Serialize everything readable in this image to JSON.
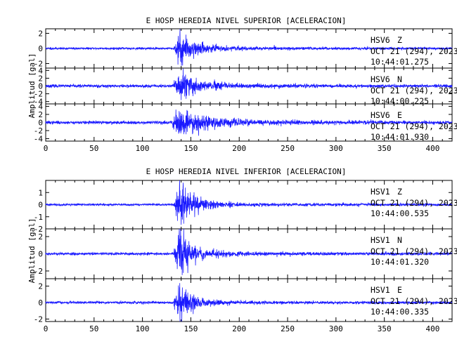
{
  "chart_data": [
    {
      "type": "line",
      "title": "E HOSP HEREDIA NIVEL SUPERIOR [ACELERACION]",
      "ylabel": "Amplitud [gal]",
      "xlim": [
        0,
        420
      ],
      "xticks": [
        0,
        50,
        100,
        150,
        200,
        250,
        300,
        350,
        400
      ],
      "series": [
        {
          "station": "HSV6",
          "component": "Z",
          "date": "OCT 21 (294), 2023",
          "time": "10:44:01.275",
          "ylim": [
            -2.6,
            2.6
          ],
          "yticks": [
            -2,
            0,
            2
          ],
          "onset": 132,
          "peak": 2.3,
          "decay": 14,
          "noise": 0.06,
          "coda": 0.08,
          "seed": 11
        },
        {
          "station": "HSV6",
          "component": "N",
          "date": "OCT 21 (294), 2023",
          "time": "10:44:00.225",
          "ylim": [
            -4.6,
            4.6
          ],
          "yticks": [
            -4,
            -2,
            0,
            2,
            4
          ],
          "onset": 132,
          "peak": 4.2,
          "decay": 16,
          "noise": 0.09,
          "coda": 0.1,
          "seed": 23
        },
        {
          "station": "HSV6",
          "component": "E",
          "date": "OCT 21 (294), 2023",
          "time": "10:44:01.930",
          "ylim": [
            -4.6,
            4.6
          ],
          "yticks": [
            -4,
            -2,
            0,
            2,
            4
          ],
          "onset": 131,
          "peak": 3.8,
          "decay": 22,
          "noise": 0.09,
          "coda": 0.16,
          "seed": 37
        }
      ]
    },
    {
      "type": "line",
      "title": "E HOSP HEREDIA NIVEL INFERIOR [ACELERACION]",
      "ylabel": "Amplitud [gal]",
      "xlim": [
        0,
        420
      ],
      "xticks": [
        0,
        50,
        100,
        150,
        200,
        250,
        300,
        350,
        400
      ],
      "series": [
        {
          "station": "HSV1",
          "component": "Z",
          "date": "OCT 21 (294), 2023",
          "time": "10:44:00.535",
          "ylim": [
            -2,
            2
          ],
          "yticks": [
            -2,
            -1,
            0,
            1
          ],
          "onset": 132,
          "peak": 1.9,
          "decay": 14,
          "noise": 0.05,
          "coda": 0.08,
          "seed": 41
        },
        {
          "station": "HSV1",
          "component": "N",
          "date": "OCT 21 (294), 2023",
          "time": "10:44:01.320",
          "ylim": [
            -2.9,
            2.9
          ],
          "yticks": [
            -2,
            0,
            2
          ],
          "onset": 132,
          "peak": 2.8,
          "decay": 13,
          "noise": 0.06,
          "coda": 0.08,
          "seed": 53
        },
        {
          "station": "HSV1",
          "component": "E",
          "date": "OCT 21 (294), 2023",
          "time": "10:44:00.335",
          "ylim": [
            -2.3,
            2.9
          ],
          "yticks": [
            -2,
            0,
            2
          ],
          "onset": 132,
          "peak": 2.4,
          "decay": 12,
          "noise": 0.06,
          "coda": 0.07,
          "seed": 67
        }
      ]
    }
  ],
  "colors": {
    "trace": "#1a1aff",
    "frame": "#000000",
    "background": "#ffffff"
  }
}
